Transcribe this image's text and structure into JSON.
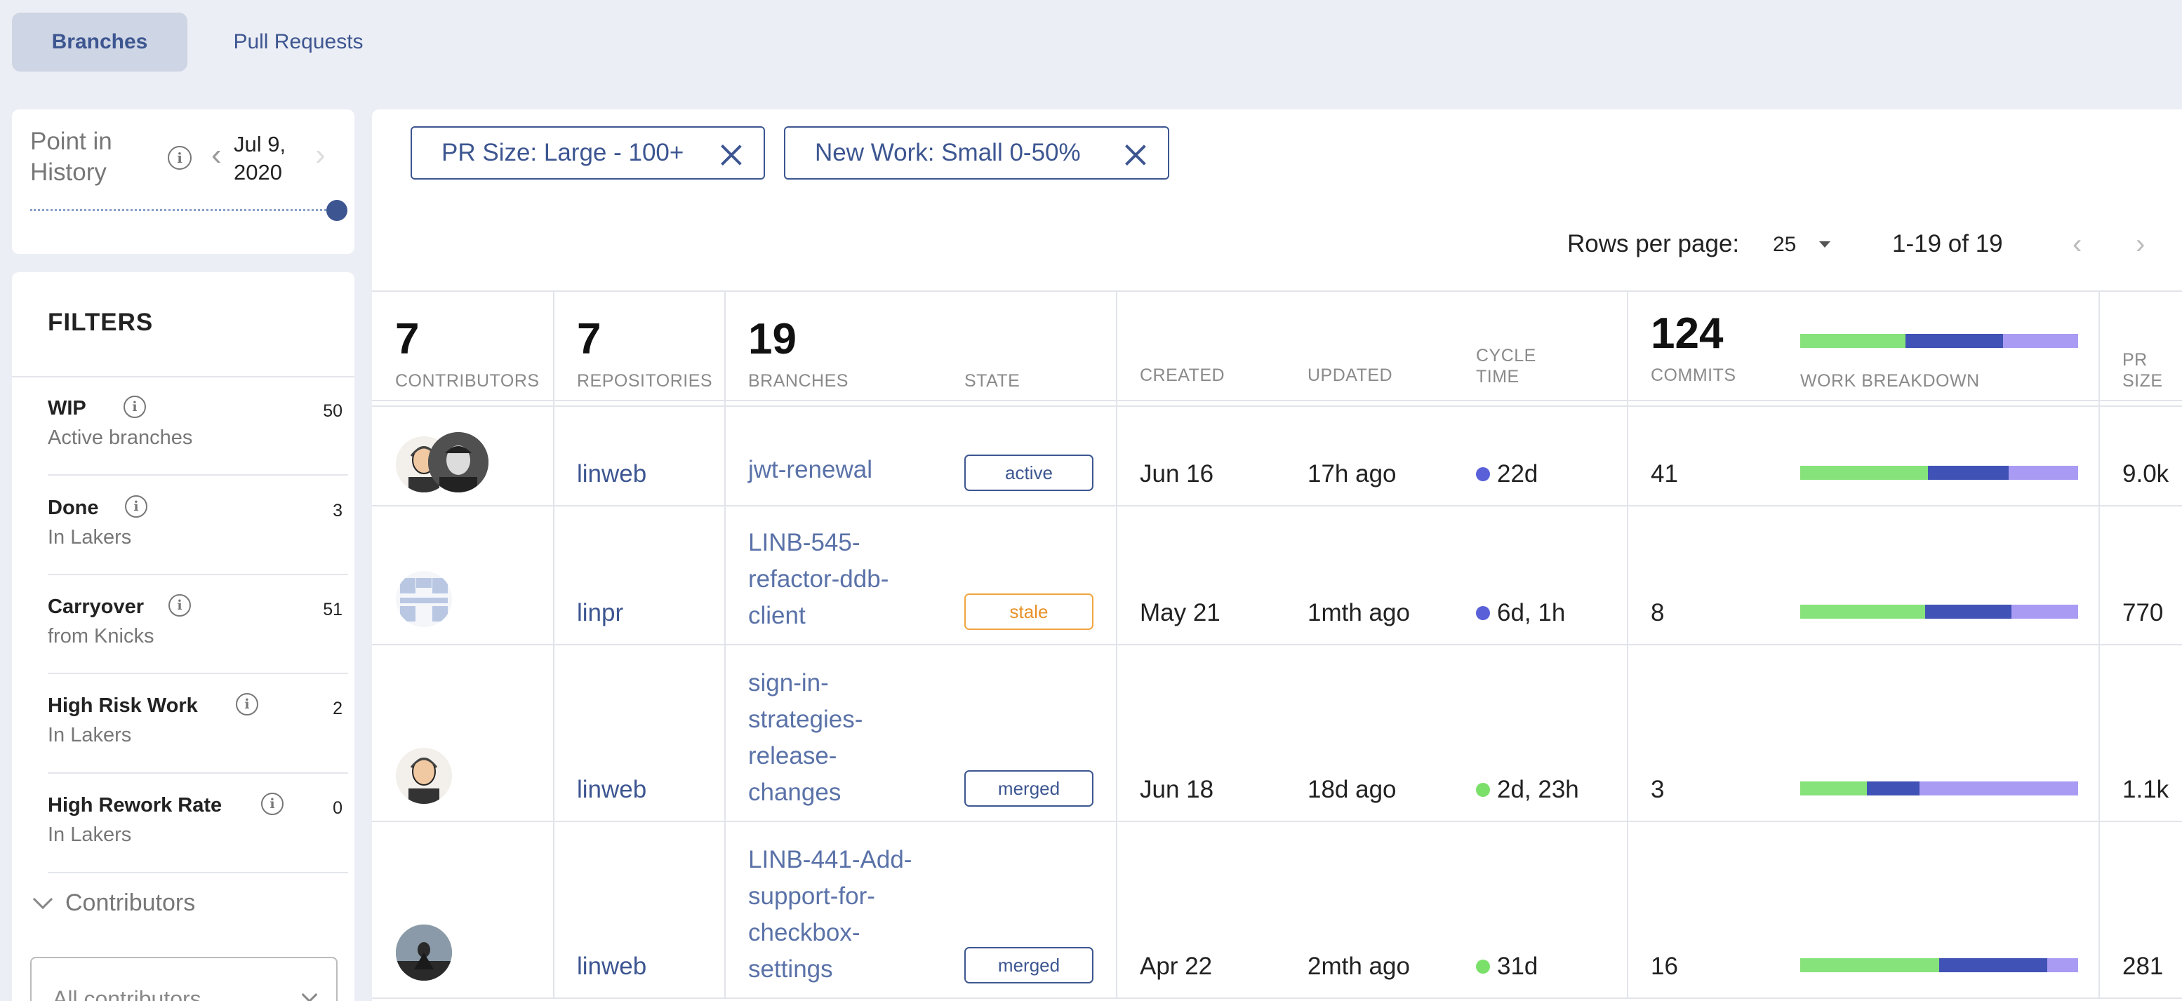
{
  "tabs": [
    {
      "label": "Branches",
      "active": true
    },
    {
      "label": "Pull Requests",
      "active": false
    }
  ],
  "history": {
    "label": "Point in History",
    "date": "Jul 9, 2020"
  },
  "filters": {
    "title": "FILTERS",
    "items": [
      {
        "name": "WIP",
        "sub": "Active branches",
        "count": "50"
      },
      {
        "name": "Done",
        "sub": "In Lakers",
        "count": "3"
      },
      {
        "name": "Carryover",
        "sub": "from Knicks",
        "count": "51"
      },
      {
        "name": "High Risk Work",
        "sub": "In Lakers",
        "count": "2"
      },
      {
        "name": "High Rework Rate",
        "sub": "In Lakers",
        "count": "0"
      }
    ],
    "contributors_label": "Contributors",
    "contributors_select": "All contributors"
  },
  "chips": [
    {
      "label": "PR Size: Large - 100+"
    },
    {
      "label": "New Work: Small 0-50%"
    }
  ],
  "pager": {
    "rows_label": "Rows per page:",
    "rows_value": "25",
    "range": "1-19 of 19"
  },
  "summary": {
    "contributors": {
      "value": "7",
      "label": "CONTRIBUTORS"
    },
    "repositories": {
      "value": "7",
      "label": "REPOSITORIES"
    },
    "branches": {
      "value": "19",
      "label": "BRANCHES"
    },
    "state_label": "STATE",
    "created_label": "CREATED",
    "updated_label": "UPDATED",
    "cycle_label_1": "CYCLE",
    "cycle_label_2": "TIME",
    "commits": {
      "value": "124",
      "label": "COMMITS"
    },
    "work_label": "WORK BREAKDOWN",
    "work_breakdown": [
      0.38,
      0.35,
      0.27
    ],
    "pr_label_1": "PR",
    "pr_label_2": "SIZE"
  },
  "colors": {
    "new_work": "#86e27a",
    "refactor": "#4052b5",
    "rework": "#a99bf3",
    "cycle_slow": "#5a60d8",
    "cycle_fast": "#7be06a"
  },
  "rows": [
    {
      "repo": "linweb",
      "branch": "jwt-renewal",
      "state": "active",
      "created": "Jun 16",
      "updated": "17h ago",
      "cycle": "22d",
      "cycle_color": "#5a60d8",
      "commits": "41",
      "breakdown": [
        0.46,
        0.29,
        0.25
      ],
      "pr_size": "9.0k",
      "avatar_icons": [
        "person-avatar-icon",
        "person-avatar-icon"
      ]
    },
    {
      "repo": "linpr",
      "branch": "LINB-545-refactor-ddb-client",
      "branch_lines": [
        "LINB-545-",
        "refactor-ddb-",
        "client"
      ],
      "state": "stale",
      "created": "May 21",
      "updated": "1mth ago",
      "cycle": "6d, 1h",
      "cycle_color": "#5a60d8",
      "commits": "8",
      "breakdown": [
        0.45,
        0.31,
        0.24
      ],
      "pr_size": "770",
      "avatar_icons": [
        "identicon-avatar-icon"
      ]
    },
    {
      "repo": "linweb",
      "branch": "sign-in-strategies-release-changes",
      "branch_lines": [
        "sign-in-",
        "strategies-",
        "release-",
        "changes"
      ],
      "state": "merged",
      "created": "Jun 18",
      "updated": "18d ago",
      "cycle": "2d, 23h",
      "cycle_color": "#7be06a",
      "commits": "3",
      "breakdown": [
        0.24,
        0.19,
        0.57
      ],
      "pr_size": "1.1k",
      "avatar_icons": [
        "person-avatar-icon"
      ]
    },
    {
      "repo": "linweb",
      "branch": "LINB-441-Add-support-for-checkbox-settings",
      "branch_lines": [
        "LINB-441-Add-",
        "support-for-",
        "checkbox-",
        "settings"
      ],
      "state": "merged",
      "created": "Apr 22",
      "updated": "2mth ago",
      "cycle": "31d",
      "cycle_color": "#7be06a",
      "commits": "16",
      "breakdown": [
        0.5,
        0.39,
        0.11
      ],
      "pr_size": "281",
      "avatar_icons": [
        "person-avatar-icon"
      ]
    }
  ]
}
